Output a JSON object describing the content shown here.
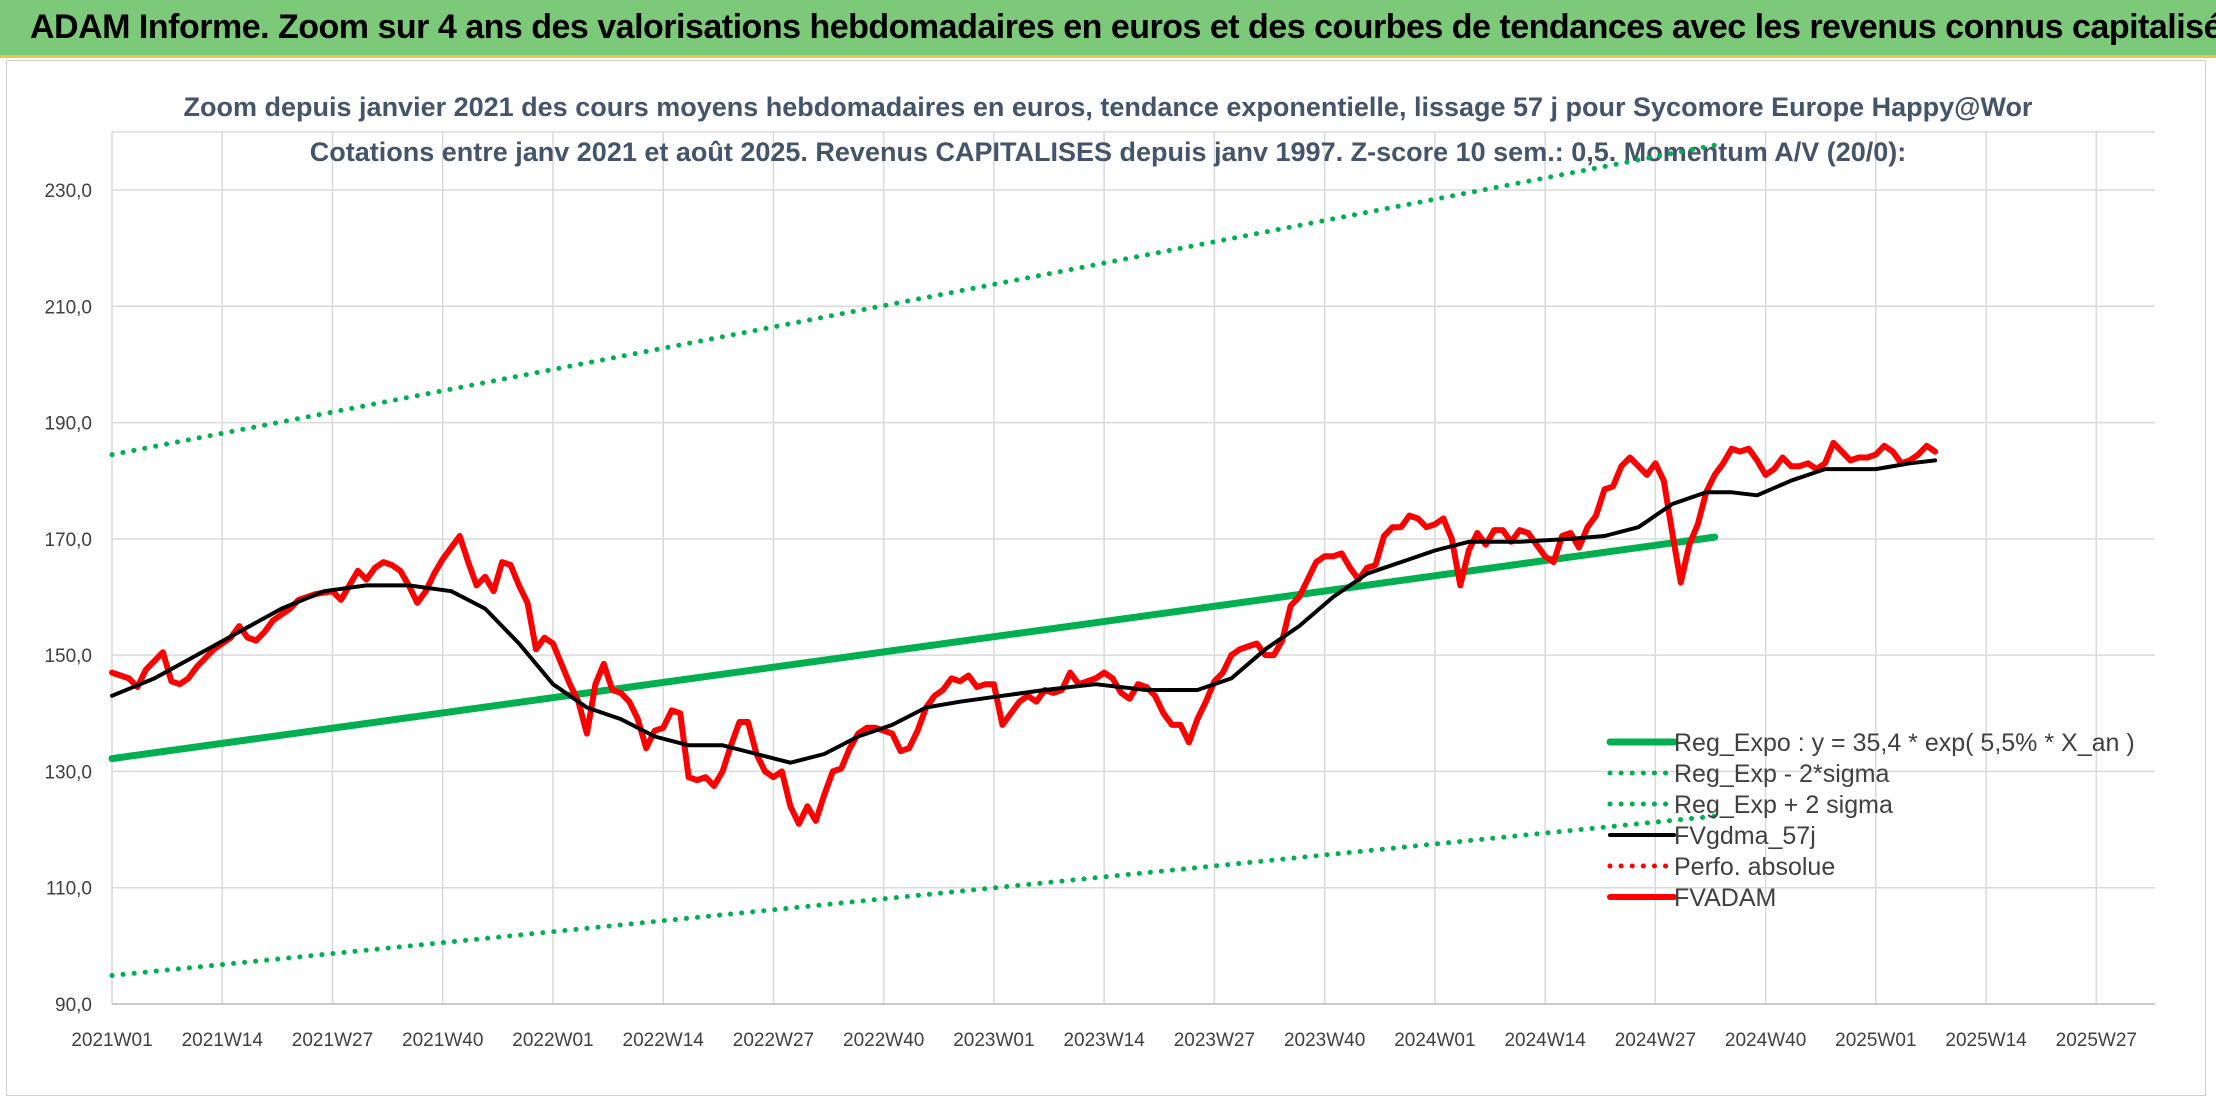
{
  "header": {
    "banner_title": "ADAM Informe. Zoom sur 4 ans des valorisations hebdomadaires en euros et des courbes de tendances avec les revenus connus capitalisés"
  },
  "colors": {
    "banner_bg": "#7dc97a",
    "regression": "#00b050",
    "fvgdma": "#000000",
    "fvadam": "#ff0000",
    "perfo": "#ff0000",
    "title_text": "#44546a"
  },
  "chart_data": {
    "type": "line",
    "title_line1": "Zoom depuis janvier 2021 des cours moyens hebdomadaires en euros, tendance exponentielle, lissage 57 j pour Sycomore Europe Happy@Wor",
    "title_line2": "Cotations entre janv 2021 et août 2025. Revenus CAPITALISES depuis janv 1997. Z-score 10 sem.: 0,5. Momentum A/V (20/0):",
    "ylim": [
      90,
      240
    ],
    "yticks": [
      "90,0",
      "110,0",
      "130,0",
      "150,0",
      "170,0",
      "190,0",
      "210,0",
      "230,0"
    ],
    "ytick_values": [
      90,
      110,
      130,
      150,
      170,
      190,
      210,
      230
    ],
    "x_tick_labels": [
      "2021W01",
      "2021W14",
      "2021W27",
      "2021W40",
      "2022W01",
      "2022W14",
      "2022W27",
      "2022W40",
      "2023W01",
      "2023W14",
      "2023W27",
      "2023W40",
      "2024W01",
      "2024W14",
      "2024W27",
      "2024W40",
      "2025W01",
      "2025W14",
      "2025W27"
    ],
    "n_weeks": 190,
    "grid": true,
    "legend_position": "bottom-right",
    "series": [
      {
        "name": "Reg_Expo : y = 35,4 * exp( 5,5% *  X_an )",
        "style": "solid-thick",
        "color": "#00b050",
        "points": [
          [
            0,
            132.2
          ],
          [
            189,
            170.3
          ]
        ]
      },
      {
        "name": "Reg_Exp - 2*sigma",
        "style": "dotted",
        "color": "#00b050",
        "points": [
          [
            0,
            94.9
          ],
          [
            189,
            122.3
          ]
        ]
      },
      {
        "name": "Reg_Exp + 2 sigma",
        "style": "dotted",
        "color": "#00b050",
        "points": [
          [
            0,
            184.5
          ],
          [
            189,
            237.7
          ]
        ]
      },
      {
        "name": "FVgdma_57j",
        "style": "solid",
        "color": "#000000",
        "points": [
          [
            0,
            143
          ],
          [
            5,
            146
          ],
          [
            10,
            150
          ],
          [
            15,
            154
          ],
          [
            20,
            158
          ],
          [
            25,
            161
          ],
          [
            30,
            162
          ],
          [
            35,
            162
          ],
          [
            40,
            161
          ],
          [
            44,
            158
          ],
          [
            48,
            152
          ],
          [
            52,
            145
          ],
          [
            56,
            141
          ],
          [
            60,
            139
          ],
          [
            64,
            136
          ],
          [
            68,
            134.5
          ],
          [
            72,
            134.5
          ],
          [
            76,
            133
          ],
          [
            80,
            131.5
          ],
          [
            84,
            133
          ],
          [
            88,
            136
          ],
          [
            92,
            138
          ],
          [
            96,
            141
          ],
          [
            100,
            142
          ],
          [
            105,
            143
          ],
          [
            110,
            144
          ],
          [
            116,
            145
          ],
          [
            122,
            144
          ],
          [
            128,
            144
          ],
          [
            132,
            146
          ],
          [
            136,
            151
          ],
          [
            140,
            155
          ],
          [
            144,
            160
          ],
          [
            148,
            164
          ],
          [
            152,
            166
          ],
          [
            156,
            168
          ],
          [
            160,
            169.5
          ],
          [
            166,
            169.5
          ],
          [
            172,
            170
          ],
          [
            176,
            170.5
          ],
          [
            180,
            172
          ],
          [
            184,
            176
          ],
          [
            188,
            178
          ],
          [
            191,
            178
          ],
          [
            194,
            177.5
          ],
          [
            198,
            180
          ],
          [
            202,
            182
          ],
          [
            208,
            182
          ],
          [
            212,
            183
          ],
          [
            215,
            183.5
          ]
        ]
      },
      {
        "name": "Perfo. absolue",
        "style": "dotted",
        "color": "#ff0000",
        "points": []
      },
      {
        "name": "FVADAM",
        "style": "solid-thick",
        "color": "#ff0000",
        "points": [
          [
            0,
            147
          ],
          [
            2,
            146
          ],
          [
            3,
            144.5
          ],
          [
            4,
            147.5
          ],
          [
            5,
            149
          ],
          [
            6,
            150.5
          ],
          [
            7,
            145.5
          ],
          [
            8,
            145
          ],
          [
            9,
            146
          ],
          [
            10,
            148
          ],
          [
            12,
            151
          ],
          [
            14,
            153
          ],
          [
            15,
            155
          ],
          [
            16,
            153
          ],
          [
            17,
            152.5
          ],
          [
            18,
            154
          ],
          [
            19,
            156
          ],
          [
            21,
            158
          ],
          [
            22,
            159.5
          ],
          [
            24,
            160.5
          ],
          [
            26,
            161
          ],
          [
            27,
            159.5
          ],
          [
            28,
            162
          ],
          [
            29,
            164.5
          ],
          [
            30,
            163
          ],
          [
            31,
            165
          ],
          [
            32,
            166
          ],
          [
            33,
            165.5
          ],
          [
            34,
            164.5
          ],
          [
            35,
            162
          ],
          [
            36,
            159
          ],
          [
            37,
            161
          ],
          [
            38,
            164
          ],
          [
            39,
            166.5
          ],
          [
            40,
            168.5
          ],
          [
            41,
            170.5
          ],
          [
            42,
            166
          ],
          [
            43,
            162
          ],
          [
            44,
            163.5
          ],
          [
            45,
            161
          ],
          [
            46,
            166
          ],
          [
            47,
            165.5
          ],
          [
            48,
            162
          ],
          [
            49,
            159
          ],
          [
            50,
            151
          ],
          [
            51,
            153
          ],
          [
            52,
            152
          ],
          [
            53,
            148.5
          ],
          [
            54,
            145
          ],
          [
            55,
            142
          ],
          [
            56,
            136.5
          ],
          [
            57,
            145
          ],
          [
            58,
            148.5
          ],
          [
            59,
            144
          ],
          [
            60,
            143.5
          ],
          [
            61,
            142
          ],
          [
            62,
            139
          ],
          [
            63,
            134
          ],
          [
            64,
            137
          ],
          [
            65,
            137.5
          ],
          [
            66,
            140.5
          ],
          [
            67,
            140
          ],
          [
            68,
            129
          ],
          [
            69,
            128.5
          ],
          [
            70,
            129
          ],
          [
            71,
            127.5
          ],
          [
            72,
            130
          ],
          [
            73,
            134.5
          ],
          [
            74,
            138.5
          ],
          [
            75,
            138.5
          ],
          [
            76,
            133
          ],
          [
            77,
            130
          ],
          [
            78,
            129
          ],
          [
            79,
            130
          ],
          [
            80,
            124
          ],
          [
            81,
            121
          ],
          [
            82,
            124
          ],
          [
            83,
            121.5
          ],
          [
            84,
            126
          ],
          [
            85,
            130
          ],
          [
            86,
            130.5
          ],
          [
            87,
            134
          ],
          [
            88,
            136.5
          ],
          [
            89,
            137.5
          ],
          [
            90,
            137.5
          ],
          [
            91,
            137
          ],
          [
            92,
            136.5
          ],
          [
            93,
            133.5
          ],
          [
            94,
            134
          ],
          [
            95,
            137
          ],
          [
            96,
            141
          ],
          [
            97,
            143
          ],
          [
            98,
            144
          ],
          [
            99,
            146
          ],
          [
            100,
            145.5
          ],
          [
            101,
            146.5
          ],
          [
            102,
            144.5
          ],
          [
            103,
            145
          ],
          [
            104,
            145
          ],
          [
            105,
            138
          ],
          [
            106,
            140
          ],
          [
            107,
            142
          ],
          [
            108,
            143
          ],
          [
            109,
            142
          ],
          [
            110,
            144
          ],
          [
            111,
            143.5
          ],
          [
            112,
            144
          ],
          [
            113,
            147
          ],
          [
            114,
            145
          ],
          [
            115,
            145.5
          ],
          [
            116,
            146
          ],
          [
            117,
            147
          ],
          [
            118,
            146
          ],
          [
            119,
            143.5
          ],
          [
            120,
            142.5
          ],
          [
            121,
            145
          ],
          [
            122,
            144.5
          ],
          [
            123,
            143
          ],
          [
            124,
            140
          ],
          [
            125,
            138
          ],
          [
            126,
            138
          ],
          [
            127,
            135
          ],
          [
            128,
            139
          ],
          [
            129,
            142
          ],
          [
            130,
            145.5
          ],
          [
            131,
            147
          ],
          [
            132,
            150
          ],
          [
            133,
            151
          ],
          [
            134,
            151.5
          ],
          [
            135,
            152
          ],
          [
            136,
            150
          ],
          [
            137,
            150
          ],
          [
            138,
            152.5
          ],
          [
            139,
            158.5
          ],
          [
            140,
            160
          ],
          [
            141,
            163
          ],
          [
            142,
            166
          ],
          [
            143,
            167
          ],
          [
            144,
            167
          ],
          [
            145,
            167.5
          ],
          [
            146,
            165
          ],
          [
            147,
            163
          ],
          [
            148,
            165
          ],
          [
            149,
            165.5
          ],
          [
            150,
            170.5
          ],
          [
            151,
            172
          ],
          [
            152,
            172
          ],
          [
            153,
            174
          ],
          [
            154,
            173.5
          ],
          [
            155,
            172
          ],
          [
            156,
            172.5
          ],
          [
            157,
            173.5
          ],
          [
            158,
            170
          ],
          [
            159,
            162
          ],
          [
            160,
            168
          ],
          [
            161,
            171
          ],
          [
            162,
            169
          ],
          [
            163,
            171.5
          ],
          [
            164,
            171.5
          ],
          [
            165,
            169.5
          ],
          [
            166,
            171.5
          ],
          [
            167,
            171
          ],
          [
            168,
            169
          ],
          [
            169,
            167
          ],
          [
            170,
            166
          ],
          [
            171,
            170.5
          ],
          [
            172,
            171
          ],
          [
            173,
            168.5
          ],
          [
            174,
            172
          ],
          [
            175,
            174
          ],
          [
            176,
            178.5
          ],
          [
            177,
            179
          ],
          [
            178,
            182.5
          ],
          [
            179,
            184
          ],
          [
            180,
            182.5
          ],
          [
            181,
            181
          ],
          [
            182,
            183
          ],
          [
            183,
            180
          ],
          [
            184,
            171
          ],
          [
            185,
            162.5
          ],
          [
            186,
            169
          ],
          [
            187,
            172.5
          ],
          [
            188,
            178
          ],
          [
            189,
            181
          ],
          [
            190,
            183
          ],
          [
            191,
            185.5
          ],
          [
            192,
            185
          ],
          [
            193,
            185.5
          ],
          [
            194,
            183.5
          ],
          [
            195,
            181
          ],
          [
            196,
            182
          ],
          [
            197,
            184
          ],
          [
            198,
            182.5
          ],
          [
            199,
            182.5
          ],
          [
            200,
            183
          ],
          [
            201,
            182
          ],
          [
            202,
            183
          ],
          [
            203,
            186.5
          ],
          [
            204,
            185
          ],
          [
            205,
            183.5
          ],
          [
            206,
            184
          ],
          [
            207,
            184
          ],
          [
            208,
            184.5
          ],
          [
            209,
            186
          ],
          [
            210,
            185
          ],
          [
            211,
            183
          ],
          [
            212,
            183.5
          ],
          [
            213,
            184.5
          ],
          [
            214,
            186
          ],
          [
            215,
            185
          ]
        ]
      }
    ]
  }
}
